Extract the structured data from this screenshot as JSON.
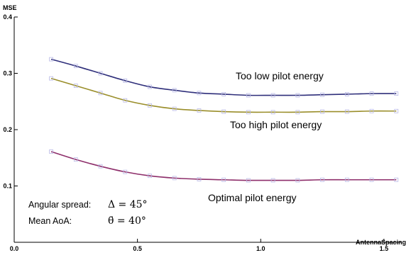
{
  "chart_data": {
    "type": "line",
    "xlabel": "AntennaSpacing",
    "ylabel": "MSE",
    "xlim": [
      0,
      1.6
    ],
    "ylim": [
      0,
      0.4
    ],
    "xticks": [
      0.0,
      0.5,
      1.0,
      1.5
    ],
    "xtick_labels": [
      "0.0",
      "0.5",
      "1.0",
      "1.5"
    ],
    "yticks": [
      0.1,
      0.2,
      0.3,
      0.4
    ],
    "ytick_labels": [
      "0.1",
      "0.2",
      "0.3",
      "0.4"
    ],
    "grid": false,
    "x": [
      0.15,
      0.25,
      0.35,
      0.45,
      0.55,
      0.65,
      0.75,
      0.85,
      0.95,
      1.05,
      1.15,
      1.25,
      1.35,
      1.45,
      1.55
    ],
    "series": [
      {
        "color": "#2e2e7a",
        "values": [
          0.325,
          0.313,
          0.3,
          0.287,
          0.276,
          0.27,
          0.265,
          0.263,
          0.261,
          0.261,
          0.261,
          0.262,
          0.263,
          0.264,
          0.264
        ]
      },
      {
        "color": "#9a8e2a",
        "values": [
          0.291,
          0.278,
          0.265,
          0.252,
          0.243,
          0.237,
          0.234,
          0.232,
          0.231,
          0.231,
          0.231,
          0.232,
          0.232,
          0.233,
          0.233
        ]
      },
      {
        "color": "#8e2f6b",
        "values": [
          0.161,
          0.147,
          0.135,
          0.125,
          0.118,
          0.114,
          0.112,
          0.111,
          0.11,
          0.11,
          0.11,
          0.111,
          0.111,
          0.111,
          0.111
        ]
      }
    ],
    "annotations": {
      "too_low": "Too low pilot energy",
      "too_high": "Too high pilot energy",
      "optimal": "Optimal pilot energy",
      "angular_spread_label": "Angular spread:",
      "angular_spread_value": "Δ = 45°",
      "mean_aoa_label": "Mean AoA:",
      "mean_aoa_value": "θ̄ = 40°"
    }
  }
}
